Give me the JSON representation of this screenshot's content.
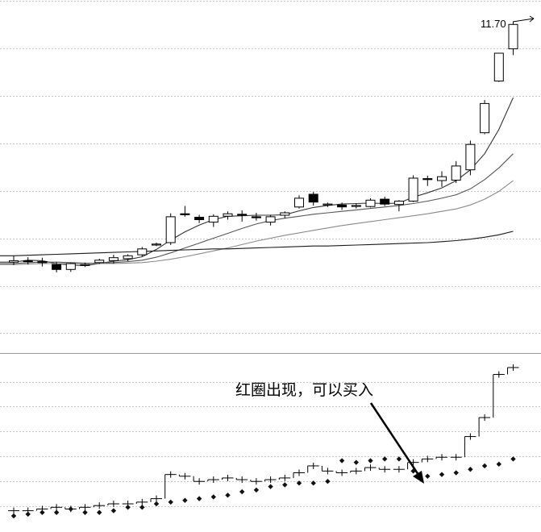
{
  "chart_data": [
    {
      "type": "candlestick",
      "title": "",
      "xlabel": "",
      "ylabel": "",
      "grid": true,
      "price_max_label": "11.70",
      "ylim": [
        5.0,
        12.2
      ],
      "candles": [
        {
          "open": 6.83,
          "high": 6.96,
          "low": 6.77,
          "close": 6.86
        },
        {
          "open": 6.86,
          "high": 6.93,
          "low": 6.78,
          "close": 6.84
        },
        {
          "open": 6.84,
          "high": 6.92,
          "low": 6.74,
          "close": 6.82
        },
        {
          "open": 6.78,
          "high": 6.83,
          "low": 6.62,
          "close": 6.68
        },
        {
          "open": 6.68,
          "high": 6.82,
          "low": 6.63,
          "close": 6.8
        },
        {
          "open": 6.76,
          "high": 6.82,
          "low": 6.73,
          "close": 6.78
        },
        {
          "open": 6.82,
          "high": 6.9,
          "low": 6.79,
          "close": 6.87
        },
        {
          "open": 6.86,
          "high": 6.98,
          "low": 6.8,
          "close": 6.92
        },
        {
          "open": 6.9,
          "high": 6.99,
          "low": 6.85,
          "close": 6.96
        },
        {
          "open": 6.98,
          "high": 7.14,
          "low": 6.95,
          "close": 7.1
        },
        {
          "open": 7.18,
          "high": 7.23,
          "low": 7.16,
          "close": 7.2
        },
        {
          "open": 7.23,
          "high": 7.83,
          "low": 7.18,
          "close": 7.76
        },
        {
          "open": 7.82,
          "high": 7.98,
          "low": 7.76,
          "close": 7.8
        },
        {
          "open": 7.75,
          "high": 7.8,
          "low": 7.63,
          "close": 7.7
        },
        {
          "open": 7.65,
          "high": 7.81,
          "low": 7.55,
          "close": 7.77
        },
        {
          "open": 7.77,
          "high": 7.87,
          "low": 7.7,
          "close": 7.82
        },
        {
          "open": 7.81,
          "high": 7.89,
          "low": 7.66,
          "close": 7.79
        },
        {
          "open": 7.76,
          "high": 7.84,
          "low": 7.68,
          "close": 7.75
        },
        {
          "open": 7.65,
          "high": 7.8,
          "low": 7.58,
          "close": 7.76
        },
        {
          "open": 7.79,
          "high": 7.87,
          "low": 7.73,
          "close": 7.84
        },
        {
          "open": 7.96,
          "high": 8.2,
          "low": 7.93,
          "close": 8.14
        },
        {
          "open": 8.22,
          "high": 8.27,
          "low": 7.99,
          "close": 8.06
        },
        {
          "open": 8.0,
          "high": 8.05,
          "low": 7.96,
          "close": 8.02
        },
        {
          "open": 8.0,
          "high": 8.05,
          "low": 7.9,
          "close": 7.96
        },
        {
          "open": 7.97,
          "high": 8.03,
          "low": 7.93,
          "close": 7.99
        },
        {
          "open": 7.97,
          "high": 8.14,
          "low": 7.95,
          "close": 8.1
        },
        {
          "open": 8.12,
          "high": 8.17,
          "low": 7.98,
          "close": 8.02
        },
        {
          "open": 8.01,
          "high": 8.1,
          "low": 7.87,
          "close": 8.08
        },
        {
          "open": 8.08,
          "high": 8.61,
          "low": 8.06,
          "close": 8.55
        },
        {
          "open": 8.54,
          "high": 8.6,
          "low": 8.39,
          "close": 8.52
        },
        {
          "open": 8.5,
          "high": 8.69,
          "low": 8.37,
          "close": 8.58
        },
        {
          "open": 8.51,
          "high": 8.9,
          "low": 8.45,
          "close": 8.8
        },
        {
          "open": 8.72,
          "high": 9.32,
          "low": 8.61,
          "close": 9.24
        },
        {
          "open": 9.48,
          "high": 10.15,
          "low": 9.45,
          "close": 10.08
        },
        {
          "open": 10.54,
          "high": 11.11,
          "low": 10.52,
          "close": 11.11
        },
        {
          "open": 11.2,
          "high": 11.75,
          "low": 11.07,
          "close": 11.7
        }
      ],
      "ma_lines": [
        {
          "values": [
            6.83,
            6.87,
            6.86,
            6.8,
            6.77,
            6.76,
            6.8,
            6.85,
            6.88,
            6.94,
            7.09,
            7.28,
            7.45,
            7.59,
            7.7,
            7.77,
            7.78,
            7.79,
            7.79,
            7.8,
            7.88,
            7.95,
            7.99,
            8.02,
            8.03,
            8.04,
            8.03,
            8.04,
            8.16,
            8.25,
            8.35,
            8.5,
            8.72,
            9.05,
            9.55,
            10.2
          ]
        },
        {
          "values": [
            6.8,
            6.82,
            6.83,
            6.83,
            6.82,
            6.81,
            6.81,
            6.82,
            6.84,
            6.87,
            6.93,
            7.02,
            7.12,
            7.22,
            7.32,
            7.42,
            7.52,
            7.61,
            7.68,
            7.73,
            7.77,
            7.81,
            7.84,
            7.87,
            7.9,
            7.93,
            7.96,
            7.99,
            8.03,
            8.08,
            8.14,
            8.21,
            8.33,
            8.52,
            8.76,
            9.05
          ]
        },
        {
          "values": [
            6.78,
            6.79,
            6.8,
            6.8,
            6.8,
            6.8,
            6.8,
            6.8,
            6.81,
            6.82,
            6.85,
            6.89,
            6.94,
            7.0,
            7.06,
            7.12,
            7.19,
            7.26,
            7.32,
            7.38,
            7.43,
            7.48,
            7.53,
            7.58,
            7.62,
            7.66,
            7.7,
            7.74,
            7.78,
            7.82,
            7.87,
            7.92,
            8.0,
            8.12,
            8.28,
            8.5
          ]
        },
        {
          "values": [
            6.96,
            6.97,
            6.98,
            6.99,
            7.0,
            7.01,
            7.02,
            7.03,
            7.04,
            7.05,
            7.06,
            7.07,
            7.08,
            7.09,
            7.1,
            7.1,
            7.11,
            7.12,
            7.13,
            7.14,
            7.15,
            7.16,
            7.16,
            7.17,
            7.18,
            7.19,
            7.2,
            7.21,
            7.22,
            7.23,
            7.25,
            7.27,
            7.3,
            7.34,
            7.39,
            7.46
          ]
        }
      ]
    },
    {
      "type": "scatter",
      "title": "",
      "xlabel": "",
      "ylabel": "",
      "grid": true,
      "ylim": [
        0,
        100
      ],
      "step_line": [
        10,
        10,
        11,
        12,
        11,
        12,
        13,
        14,
        14,
        15,
        17,
        31,
        30,
        27,
        28,
        29,
        28,
        27,
        28,
        29,
        32,
        36,
        33,
        32,
        33,
        35,
        34,
        34,
        38,
        40,
        41,
        41,
        53,
        64,
        89,
        93
      ],
      "dots": [
        7,
        8,
        9,
        9,
        11,
        9,
        9,
        10,
        12,
        12,
        14,
        15,
        16,
        17,
        18,
        19,
        21,
        22,
        24,
        25,
        26,
        26,
        27,
        39,
        38,
        39,
        40,
        40,
        33,
        30,
        31,
        32,
        34,
        36,
        37,
        40
      ]
    }
  ],
  "annotation": {
    "text": "红圈出现，可以买入"
  },
  "colors": {
    "background": "#ffffff",
    "grid": "#c8c8c8",
    "candle_outline": "#000000",
    "candle_down_fill": "#000000",
    "candle_up_fill": "#ffffff",
    "ma_colors": [
      "#333333",
      "#555555",
      "#8a8a8a",
      "#1a1a1a"
    ],
    "step": "#000000",
    "dots": "#111111",
    "divider": "#999999"
  }
}
